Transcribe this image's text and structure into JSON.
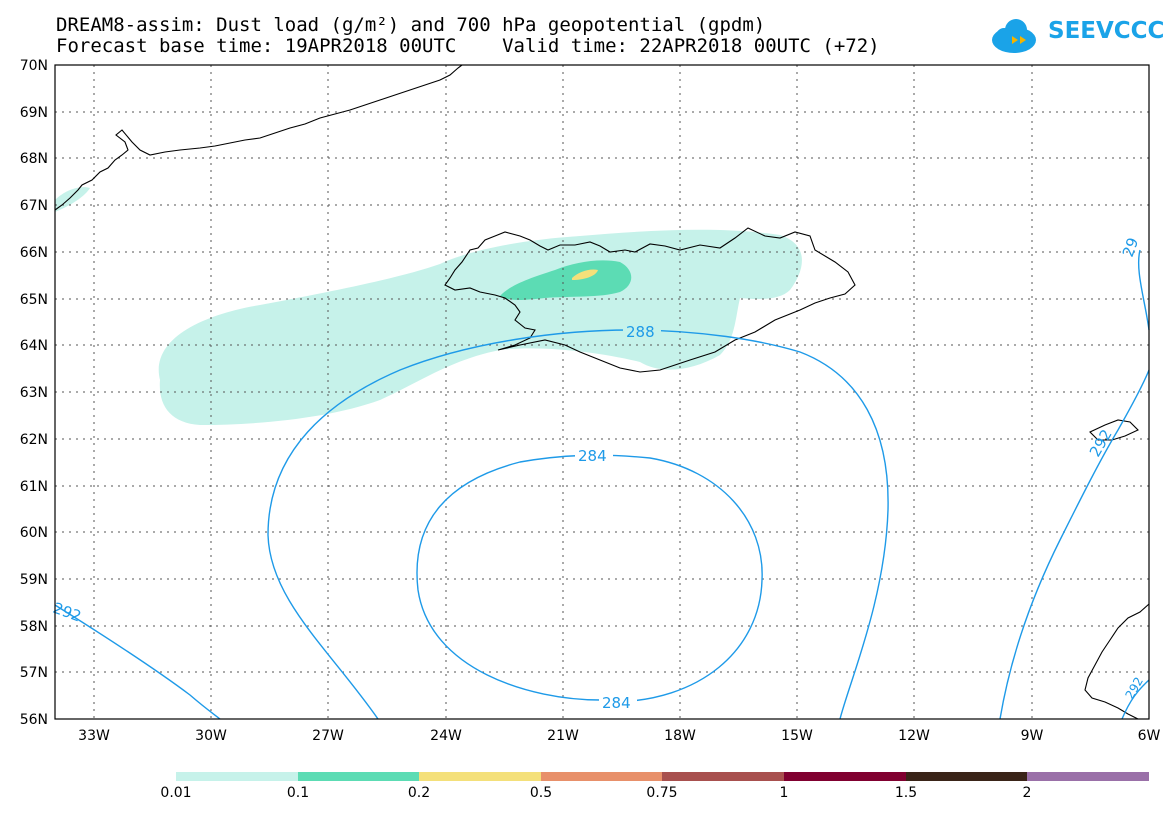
{
  "title": {
    "line1": "DREAM8-assim: Dust load (g/m²) and 700 hPa geopotential (gpdm)",
    "line2": "Forecast base time: 19APR2018 00UTC    Valid time: 22APR2018 00UTC (+72)"
  },
  "logo": {
    "text": "SEEVCCC",
    "icon": "cloud-icon",
    "color": "#1aa3e8"
  },
  "map": {
    "lat_labels": [
      "70N",
      "69N",
      "68N",
      "67N",
      "66N",
      "65N",
      "64N",
      "63N",
      "62N",
      "61N",
      "60N",
      "59N",
      "58N",
      "57N",
      "56N"
    ],
    "lon_labels": [
      "33W",
      "30W",
      "27W",
      "24W",
      "21W",
      "18W",
      "15W",
      "12W",
      "9W",
      "6W"
    ],
    "contour_labels": [
      "288",
      "284",
      "284",
      "292",
      "292",
      "292",
      "29"
    ],
    "contour_color": "#1e9ae8"
  },
  "colorbar": {
    "labels": [
      "0.01",
      "0.1",
      "0.2",
      "0.5",
      "0.75",
      "1",
      "1.5",
      "2"
    ],
    "colors": [
      "#c6f2ea",
      "#5cdcb4",
      "#f4e07a",
      "#e8906a",
      "#a8504e",
      "#800030",
      "#3a2418",
      "#9a70a8"
    ]
  }
}
